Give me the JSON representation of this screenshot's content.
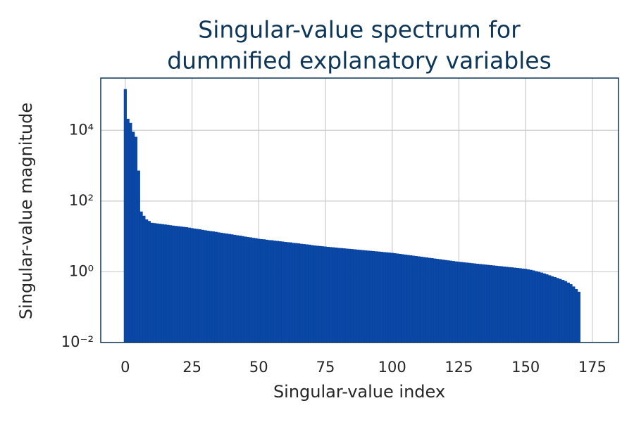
{
  "chart_data": {
    "type": "bar",
    "title": [
      "Singular-value spectrum for",
      "dummified explanatory variables"
    ],
    "x_label": "Singular-value index",
    "y_label": "Singular-value magnitude",
    "x": [
      0,
      1,
      2,
      3,
      4,
      5,
      6,
      7,
      8,
      9,
      10,
      11,
      12,
      13,
      14,
      15,
      16,
      17,
      18,
      19,
      20,
      21,
      22,
      23,
      24,
      25,
      26,
      27,
      28,
      29,
      30,
      31,
      32,
      33,
      34,
      35,
      36,
      37,
      38,
      39,
      40,
      41,
      42,
      43,
      44,
      45,
      46,
      47,
      48,
      49,
      50,
      51,
      52,
      53,
      54,
      55,
      56,
      57,
      58,
      59,
      60,
      61,
      62,
      63,
      64,
      65,
      66,
      67,
      68,
      69,
      70,
      71,
      72,
      73,
      74,
      75,
      76,
      77,
      78,
      79,
      80,
      81,
      82,
      83,
      84,
      85,
      86,
      87,
      88,
      89,
      90,
      91,
      92,
      93,
      94,
      95,
      96,
      97,
      98,
      99,
      100,
      101,
      102,
      103,
      104,
      105,
      106,
      107,
      108,
      109,
      110,
      111,
      112,
      113,
      114,
      115,
      116,
      117,
      118,
      119,
      120,
      121,
      122,
      123,
      124,
      125,
      126,
      127,
      128,
      129,
      130,
      131,
      132,
      133,
      134,
      135,
      136,
      137,
      138,
      139,
      140,
      141,
      142,
      143,
      144,
      145,
      146,
      147,
      148,
      149,
      150,
      151,
      152,
      153,
      154,
      155,
      156,
      157,
      158,
      159,
      160,
      161,
      162,
      163,
      164,
      165,
      166,
      167,
      168,
      169,
      170
    ],
    "values": [
      145000,
      21000,
      16000,
      9000,
      6500,
      720,
      50,
      38,
      30,
      27,
      24,
      23.5,
      23,
      22.5,
      22,
      21.5,
      21,
      20.5,
      20,
      19.6,
      19.2,
      18.8,
      18.4,
      18,
      17.5,
      17,
      16.5,
      16.1,
      15.7,
      15.2,
      14.8,
      14.4,
      14.0,
      13.7,
      13.3,
      12.9,
      12.6,
      12.2,
      11.9,
      11.6,
      11.3,
      11.0,
      10.7,
      10.4,
      10.1,
      9.8,
      9.5,
      9.3,
      9.0,
      8.8,
      8.5,
      8.3,
      8.2,
      8.0,
      7.8,
      7.7,
      7.5,
      7.4,
      7.2,
      7.1,
      6.9,
      6.8,
      6.7,
      6.5,
      6.4,
      6.3,
      6.1,
      6.0,
      5.9,
      5.8,
      5.6,
      5.5,
      5.4,
      5.3,
      5.2,
      5.1,
      5.0,
      4.94,
      4.86,
      4.78,
      4.7,
      4.63,
      4.55,
      4.48,
      4.41,
      4.34,
      4.27,
      4.2,
      4.13,
      4.06,
      4.0,
      3.93,
      3.87,
      3.81,
      3.75,
      3.69,
      3.63,
      3.57,
      3.51,
      3.45,
      3.4,
      3.32,
      3.25,
      3.17,
      3.1,
      3.03,
      2.96,
      2.89,
      2.82,
      2.76,
      2.7,
      2.63,
      2.57,
      2.51,
      2.45,
      2.4,
      2.34,
      2.29,
      2.24,
      2.18,
      2.13,
      2.08,
      2.04,
      1.99,
      1.94,
      1.9,
      1.87,
      1.83,
      1.8,
      1.77,
      1.73,
      1.7,
      1.67,
      1.64,
      1.61,
      1.58,
      1.55,
      1.52,
      1.5,
      1.47,
      1.44,
      1.42,
      1.39,
      1.37,
      1.34,
      1.32,
      1.29,
      1.27,
      1.25,
      1.22,
      1.2,
      1.16,
      1.12,
      1.08,
      1.03,
      0.99,
      0.94,
      0.89,
      0.84,
      0.79,
      0.74,
      0.7,
      0.66,
      0.62,
      0.58,
      0.54,
      0.49,
      0.44,
      0.38,
      0.32,
      0.27
    ],
    "color": "#0a48a8",
    "xlim": [
      -9.2,
      184.8
    ],
    "xticks": [
      0,
      25,
      50,
      75,
      100,
      125,
      150,
      175
    ],
    "ylim": [
      0.01,
      300000
    ],
    "yscale": "log",
    "yticks": [
      {
        "value": 0.01,
        "label": "10⁻²"
      },
      {
        "value": 1,
        "label": "10⁰"
      },
      {
        "value": 100,
        "label": "10²"
      },
      {
        "value": 10000,
        "label": "10⁴"
      }
    ],
    "grid": true
  }
}
